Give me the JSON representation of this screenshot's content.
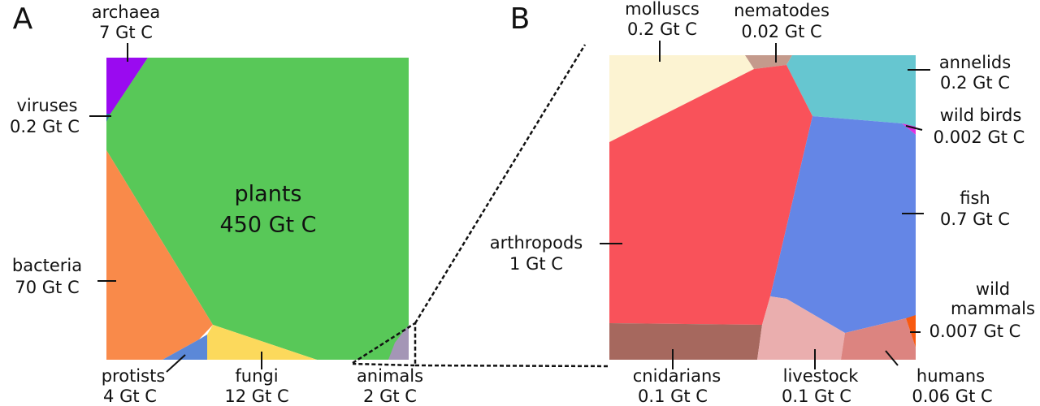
{
  "panels": [
    {
      "letter": "A",
      "cells": [
        {
          "name": "archaea",
          "amount": "7 Gt C"
        },
        {
          "name": "viruses",
          "amount": "0.2 Gt C"
        },
        {
          "name": "plants",
          "amount": "450 Gt C"
        },
        {
          "name": "bacteria",
          "amount": "70 Gt C"
        },
        {
          "name": "protists",
          "amount": "4 Gt C"
        },
        {
          "name": "fungi",
          "amount": "12 Gt C"
        },
        {
          "name": "animals",
          "amount": "2 Gt C"
        }
      ]
    },
    {
      "letter": "B",
      "cells": [
        {
          "name": "molluscs",
          "amount": "0.2 Gt C"
        },
        {
          "name": "nematodes",
          "amount": "0.02 Gt C"
        },
        {
          "name": "annelids",
          "amount": "0.2 Gt C"
        },
        {
          "name": "wild birds",
          "amount": "0.002 Gt C"
        },
        {
          "name": "fish",
          "amount": "0.7 Gt C"
        },
        {
          "name": "arthropods",
          "amount": "1 Gt C"
        },
        {
          "name_lines": [
            "wild",
            "mammals"
          ],
          "amount": "0.007 Gt C"
        },
        {
          "name": "cnidarians",
          "amount": "0.1 Gt C"
        },
        {
          "name": "livestock",
          "amount": "0.1 Gt C"
        },
        {
          "name": "humans",
          "amount": "0.06 Gt C"
        }
      ]
    }
  ]
}
